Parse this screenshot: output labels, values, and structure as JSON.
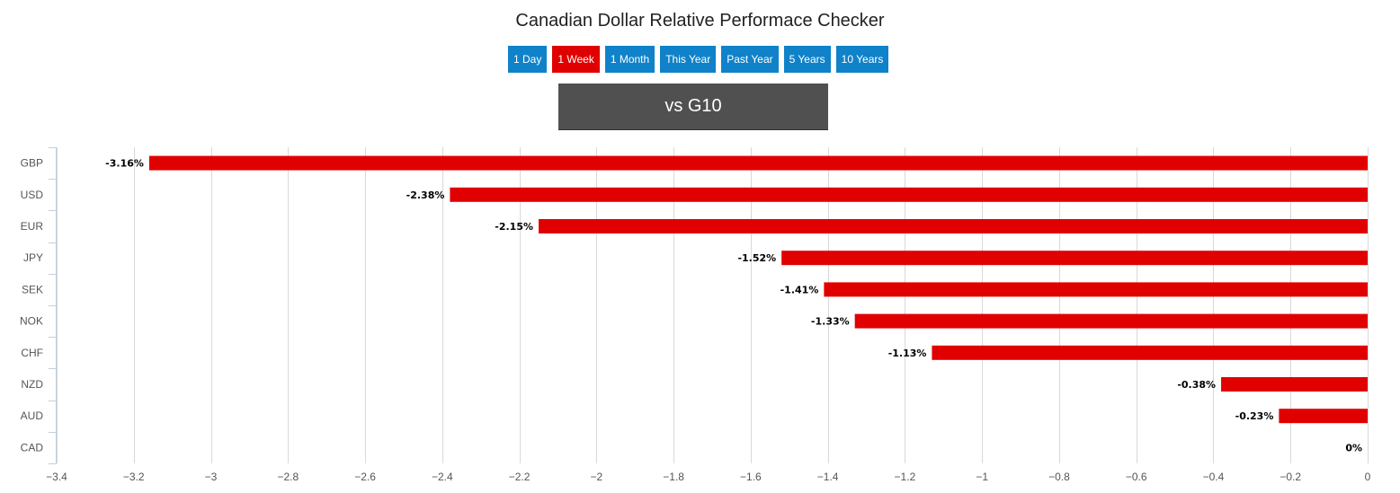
{
  "title": "Canadian Dollar Relative Performace Checker",
  "ranges": [
    {
      "label": "1 Day",
      "active": false
    },
    {
      "label": "1 Week",
      "active": true
    },
    {
      "label": "1 Month",
      "active": false
    },
    {
      "label": "This Year",
      "active": false
    },
    {
      "label": "Past Year",
      "active": false
    },
    {
      "label": "5 Years",
      "active": false
    },
    {
      "label": "10 Years",
      "active": false
    }
  ],
  "group_label": "vs G10",
  "colors": {
    "bar": "#e00000",
    "button": "#0f82c9",
    "button_active": "#e00000",
    "group_box": "#505050",
    "grid": "#d9d9d9",
    "axis": "#c0d0e0"
  },
  "chart_data": {
    "type": "bar",
    "orientation": "horizontal",
    "categories": [
      "GBP",
      "USD",
      "EUR",
      "JPY",
      "SEK",
      "NOK",
      "CHF",
      "NZD",
      "AUD",
      "CAD"
    ],
    "values": [
      -3.16,
      -2.38,
      -2.15,
      -1.52,
      -1.41,
      -1.33,
      -1.13,
      -0.38,
      -0.23,
      0
    ],
    "data_labels": [
      "-3.16%",
      "-2.38%",
      "-2.15%",
      "-1.52%",
      "-1.41%",
      "-1.33%",
      "-1.13%",
      "-0.38%",
      "-0.23%",
      "0%"
    ],
    "xlim": [
      -3.4,
      0
    ],
    "xticks": [
      -3.4,
      -3.2,
      -3,
      -2.8,
      -2.6,
      -2.4,
      -2.2,
      -2,
      -1.8,
      -1.6,
      -1.4,
      -1.2,
      -1,
      -0.8,
      -0.6,
      -0.4,
      -0.2,
      0
    ],
    "xtick_labels": [
      "−3.4",
      "−3.2",
      "−3",
      "−2.8",
      "−2.6",
      "−2.4",
      "−2.2",
      "−2",
      "−1.8",
      "−1.6",
      "−1.4",
      "−1.2",
      "−1",
      "−0.8",
      "−0.6",
      "−0.4",
      "−0.2",
      "0"
    ],
    "grid": true,
    "legend": false
  }
}
